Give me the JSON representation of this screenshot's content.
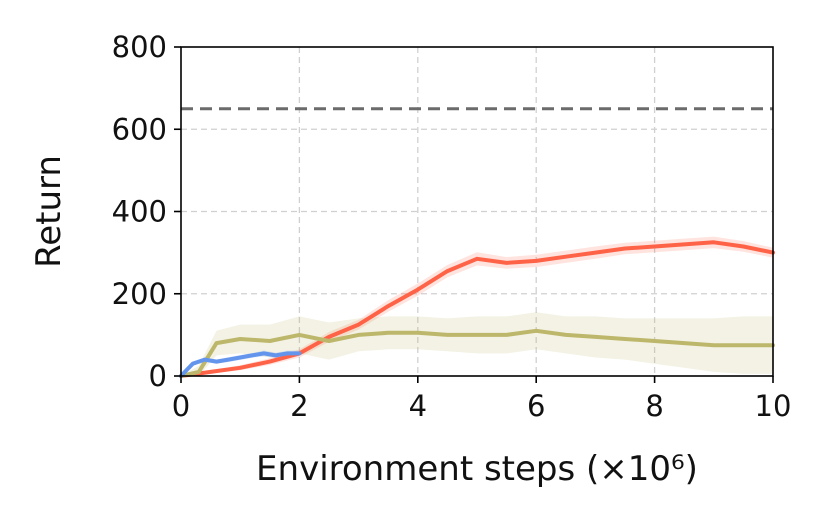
{
  "chart_data": {
    "type": "line",
    "xlabel": "Environment steps (×10⁶)",
    "ylabel": "Return",
    "xlim": [
      0,
      10
    ],
    "ylim": [
      0,
      800
    ],
    "xticks": [
      "0",
      "2",
      "4",
      "6",
      "8",
      "10"
    ],
    "yticks": [
      "0",
      "200",
      "400",
      "600",
      "800"
    ],
    "grid": true,
    "reference_line": {
      "y": 650,
      "style": "dashed",
      "color": "#6b6b6b"
    },
    "series": [
      {
        "color": "#ff6347",
        "x": [
          0,
          0.5,
          1.0,
          1.5,
          2.0,
          2.5,
          3.0,
          3.5,
          4.0,
          4.5,
          5.0,
          5.5,
          6.0,
          6.5,
          7.0,
          7.5,
          8.0,
          8.5,
          9.0,
          9.5,
          10.0
        ],
        "y": [
          0,
          10,
          20,
          35,
          55,
          95,
          125,
          170,
          210,
          255,
          285,
          275,
          280,
          290,
          300,
          310,
          315,
          320,
          325,
          315,
          300
        ],
        "band": [
          0,
          4,
          6,
          8,
          10,
          12,
          12,
          14,
          15,
          15,
          16,
          14,
          15,
          15,
          15,
          14,
          14,
          14,
          14,
          13,
          12
        ]
      },
      {
        "color": "#bdb76b",
        "x": [
          0,
          0.3,
          0.6,
          1.0,
          1.5,
          2.0,
          2.5,
          3.0,
          3.5,
          4.0,
          4.5,
          5.0,
          5.5,
          6.0,
          6.5,
          7.0,
          7.5,
          8.0,
          8.5,
          9.0,
          9.5,
          10.0
        ],
        "y": [
          0,
          10,
          80,
          90,
          85,
          100,
          85,
          100,
          105,
          105,
          100,
          100,
          100,
          110,
          100,
          95,
          90,
          85,
          80,
          75,
          75,
          75
        ],
        "band": [
          0,
          15,
          30,
          35,
          40,
          45,
          45,
          40,
          40,
          40,
          40,
          45,
          45,
          45,
          45,
          50,
          50,
          55,
          60,
          65,
          70,
          70
        ]
      },
      {
        "color": "#6495ed",
        "x": [
          0,
          0.1,
          0.2,
          0.4,
          0.6,
          0.8,
          1.0,
          1.2,
          1.4,
          1.6,
          1.8,
          2.0
        ],
        "y": [
          0,
          15,
          30,
          40,
          35,
          40,
          45,
          50,
          55,
          50,
          55,
          55
        ],
        "band": [
          0,
          3,
          4,
          5,
          5,
          6,
          6,
          6,
          7,
          7,
          7,
          7
        ]
      }
    ]
  }
}
